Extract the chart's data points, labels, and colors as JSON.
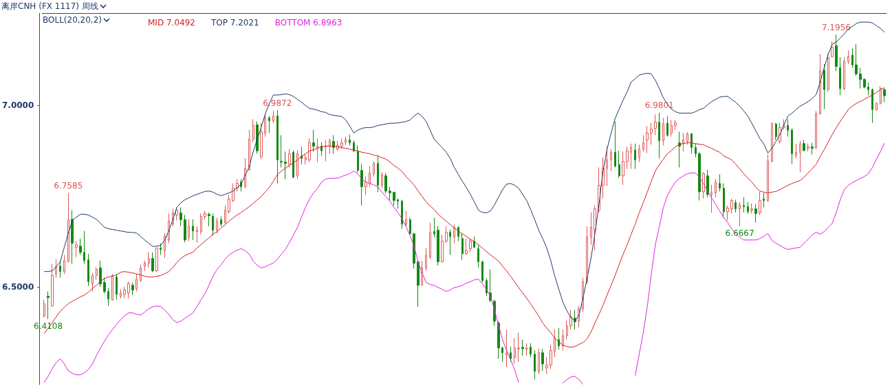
{
  "chart_data": {
    "type": "candlestick",
    "title": "离岸CNH (FX 1117) 周线",
    "legend_title": "BOLL(20,20,2)",
    "legend": "top left",
    "tick_labels": "y",
    "marker": "none",
    "line_style": "solid",
    "ylim": [
      6.23,
      7.255
    ],
    "yticks": [
      {
        "value": 6.5,
        "label": "6.5000"
      },
      {
        "value": 7,
        "label": "7.0000"
      }
    ],
    "categories": [
      null,
      null,
      null,
      null,
      null,
      null,
      null,
      null,
      null,
      null,
      null,
      null,
      null,
      null,
      null,
      null,
      null,
      null,
      null,
      null,
      null,
      null,
      null,
      null,
      null,
      null,
      null,
      null,
      null,
      null,
      null,
      null,
      null,
      null,
      null,
      null,
      null,
      null,
      null,
      null,
      null,
      null,
      null,
      null,
      null,
      null,
      null,
      null,
      null,
      null,
      null,
      null,
      null,
      null,
      null,
      null,
      null,
      null,
      null,
      null,
      null,
      null,
      null,
      null,
      null,
      null,
      null,
      null,
      null,
      null,
      null,
      null,
      null,
      null,
      null,
      null,
      null,
      null,
      null,
      null,
      null,
      null,
      null,
      null,
      null,
      null,
      null,
      null,
      null,
      null,
      null,
      null,
      null,
      null,
      null,
      null,
      null,
      null,
      null,
      null,
      null,
      null,
      null,
      null,
      null,
      null,
      null,
      null,
      null,
      null,
      null,
      null,
      null,
      null,
      null,
      null,
      null,
      null,
      null,
      null,
      null,
      null,
      null,
      null,
      null,
      null,
      null,
      null,
      null,
      null,
      null,
      null,
      null,
      null,
      null,
      null,
      null,
      null,
      null,
      null,
      null,
      null,
      null,
      null,
      null,
      null,
      null,
      null,
      null,
      null,
      null,
      null,
      null,
      null,
      null,
      null,
      null,
      null,
      null,
      null,
      null,
      null,
      null,
      null,
      null,
      null,
      null,
      null,
      null,
      null,
      null,
      null,
      null,
      null,
      null,
      null,
      null,
      null,
      null,
      null,
      null,
      null,
      null,
      null,
      null,
      null,
      null,
      null,
      null,
      null,
      null,
      null,
      null,
      null,
      null,
      null,
      null,
      null,
      null,
      null,
      null,
      null,
      null,
      null,
      null,
      null,
      null,
      null,
      null,
      null
    ],
    "ohlc": [
      [
        6.419,
        6.464,
        6.415,
        6.453
      ],
      [
        6.474,
        6.487,
        6.4108,
        6.47
      ],
      [
        6.447,
        6.563,
        6.445,
        6.531
      ],
      [
        6.535,
        6.576,
        6.525,
        6.555
      ],
      [
        6.557,
        6.572,
        6.525,
        6.542
      ],
      [
        6.542,
        6.588,
        6.535,
        6.572
      ],
      [
        6.569,
        6.7585,
        6.567,
        6.685
      ],
      [
        6.686,
        6.711,
        6.563,
        6.62
      ],
      [
        6.609,
        6.626,
        6.582,
        6.616
      ],
      [
        6.612,
        6.633,
        6.588,
        6.595
      ],
      [
        6.595,
        6.654,
        6.563,
        6.572
      ],
      [
        6.574,
        6.591,
        6.502,
        6.514
      ],
      [
        6.508,
        6.538,
        6.487,
        6.531
      ],
      [
        6.531,
        6.554,
        6.519,
        6.548
      ],
      [
        6.552,
        6.572,
        6.5,
        6.508
      ],
      [
        6.512,
        6.525,
        6.481,
        6.487
      ],
      [
        6.487,
        6.496,
        6.447,
        6.466
      ],
      [
        6.464,
        6.535,
        6.462,
        6.531
      ],
      [
        6.527,
        6.535,
        6.464,
        6.479
      ],
      [
        6.474,
        6.493,
        6.468,
        6.483
      ],
      [
        6.479,
        6.5,
        6.468,
        6.491
      ],
      [
        6.483,
        6.515,
        6.468,
        6.508
      ],
      [
        6.504,
        6.512,
        6.477,
        6.491
      ],
      [
        6.495,
        6.535,
        6.487,
        6.521
      ],
      [
        6.517,
        6.561,
        6.514,
        6.552
      ],
      [
        6.557,
        6.572,
        6.544,
        6.565
      ],
      [
        6.565,
        6.595,
        6.553,
        6.578
      ],
      [
        6.578,
        6.595,
        6.54,
        6.544
      ],
      [
        6.544,
        6.607,
        6.54,
        6.607
      ],
      [
        6.607,
        6.62,
        6.588,
        6.603
      ],
      [
        6.599,
        6.648,
        6.58,
        6.639
      ],
      [
        6.629,
        6.702,
        6.62,
        6.681
      ],
      [
        6.673,
        6.715,
        6.667,
        6.704
      ],
      [
        6.698,
        6.719,
        6.683,
        6.711
      ],
      [
        6.704,
        6.719,
        6.667,
        6.685
      ],
      [
        6.685,
        6.698,
        6.622,
        6.629
      ],
      [
        6.637,
        6.686,
        6.626,
        6.667
      ],
      [
        6.667,
        6.686,
        6.629,
        6.654
      ],
      [
        6.652,
        6.667,
        6.622,
        6.656
      ],
      [
        6.652,
        6.702,
        6.645,
        6.694
      ],
      [
        6.694,
        6.709,
        6.686,
        6.702
      ],
      [
        6.7,
        6.705,
        6.667,
        6.696
      ],
      [
        6.694,
        6.702,
        6.641,
        6.656
      ],
      [
        6.656,
        6.69,
        6.648,
        6.681
      ],
      [
        6.685,
        6.694,
        6.667,
        6.673
      ],
      [
        6.677,
        6.724,
        6.673,
        6.711
      ],
      [
        6.707,
        6.753,
        6.702,
        6.742
      ],
      [
        6.738,
        6.785,
        6.734,
        6.772
      ],
      [
        6.772,
        6.797,
        6.763,
        6.785
      ],
      [
        6.789,
        6.797,
        6.763,
        6.776
      ],
      [
        6.776,
        6.854,
        6.772,
        6.827
      ],
      [
        6.823,
        6.933,
        6.819,
        6.907
      ],
      [
        6.907,
        6.962,
        6.899,
        6.945
      ],
      [
        6.947,
        6.956,
        6.867,
        6.875
      ],
      [
        6.859,
        6.952,
        6.852,
        6.928
      ],
      [
        6.924,
        6.977,
        6.914,
        6.966
      ],
      [
        6.966,
        6.971,
        6.924,
        6.958
      ],
      [
        6.958,
        6.985,
        6.952,
        6.971
      ],
      [
        6.971,
        6.9872,
        6.785,
        6.85
      ],
      [
        6.846,
        6.918,
        6.829,
        6.844
      ],
      [
        6.844,
        6.873,
        6.797,
        6.84
      ],
      [
        6.837,
        6.88,
        6.829,
        6.867
      ],
      [
        6.871,
        6.876,
        6.8,
        6.802
      ],
      [
        6.806,
        6.876,
        6.797,
        6.867
      ],
      [
        6.861,
        6.886,
        6.838,
        6.854
      ],
      [
        6.85,
        6.867,
        6.838,
        6.857
      ],
      [
        6.85,
        6.909,
        6.844,
        6.897
      ],
      [
        6.897,
        6.933,
        6.873,
        6.888
      ],
      [
        6.884,
        6.909,
        6.844,
        6.888
      ],
      [
        6.888,
        6.899,
        6.861,
        6.875
      ],
      [
        6.886,
        6.905,
        6.846,
        6.888
      ],
      [
        6.888,
        6.909,
        6.867,
        6.903
      ],
      [
        6.901,
        6.918,
        6.867,
        6.884
      ],
      [
        6.88,
        6.903,
        6.876,
        6.89
      ],
      [
        6.888,
        6.909,
        6.88,
        6.897
      ],
      [
        6.899,
        6.914,
        6.89,
        6.905
      ],
      [
        6.905,
        6.92,
        6.89,
        6.897
      ],
      [
        6.897,
        6.903,
        6.871,
        6.875
      ],
      [
        6.873,
        6.89,
        6.816,
        6.821
      ],
      [
        6.821,
        6.839,
        6.724,
        6.776
      ],
      [
        6.776,
        6.804,
        6.753,
        6.789
      ],
      [
        6.785,
        6.833,
        6.776,
        6.814
      ],
      [
        6.812,
        6.846,
        6.804,
        6.84
      ],
      [
        6.84,
        6.861,
        6.761,
        6.78
      ],
      [
        6.78,
        6.816,
        6.772,
        6.808
      ],
      [
        6.806,
        6.814,
        6.757,
        6.764
      ],
      [
        6.764,
        6.776,
        6.738,
        6.759
      ],
      [
        6.761,
        6.761,
        6.724,
        6.738
      ],
      [
        6.74,
        6.743,
        6.715,
        6.736
      ],
      [
        6.736,
        6.74,
        6.66,
        6.673
      ],
      [
        6.673,
        6.709,
        6.667,
        6.685
      ],
      [
        6.685,
        6.69,
        6.643,
        6.646
      ],
      [
        6.646,
        6.648,
        6.55,
        6.565
      ],
      [
        6.569,
        6.571,
        6.445,
        6.504
      ],
      [
        6.504,
        6.571,
        6.504,
        6.552
      ],
      [
        6.552,
        6.607,
        6.544,
        6.586
      ],
      [
        6.582,
        6.677,
        6.576,
        6.65
      ],
      [
        6.652,
        6.69,
        6.637,
        6.646
      ],
      [
        6.656,
        6.667,
        6.559,
        6.569
      ],
      [
        6.569,
        6.643,
        6.567,
        6.626
      ],
      [
        6.626,
        6.667,
        6.62,
        6.65
      ],
      [
        6.65,
        6.658,
        6.588,
        6.639
      ],
      [
        6.637,
        6.671,
        6.62,
        6.664
      ],
      [
        6.664,
        6.667,
        6.626,
        6.639
      ],
      [
        6.633,
        6.648,
        6.574,
        6.591
      ],
      [
        6.591,
        6.633,
        6.588,
        6.599
      ],
      [
        6.605,
        6.633,
        6.595,
        6.626
      ],
      [
        6.626,
        6.639,
        6.607,
        6.609
      ],
      [
        6.605,
        6.616,
        6.553,
        6.569
      ],
      [
        6.569,
        6.572,
        6.512,
        6.517
      ],
      [
        6.517,
        6.523,
        6.474,
        6.483
      ],
      [
        6.483,
        6.548,
        6.458,
        6.462
      ],
      [
        6.46,
        6.464,
        6.392,
        6.405
      ],
      [
        6.4,
        6.405,
        6.301,
        6.331
      ],
      [
        6.331,
        6.335,
        6.293,
        6.318
      ],
      [
        6.312,
        6.382,
        6.278,
        6.318
      ],
      [
        6.318,
        6.335,
        6.293,
        6.301
      ],
      [
        6.305,
        6.358,
        6.287,
        6.331
      ],
      [
        6.329,
        6.373,
        6.293,
        6.331
      ],
      [
        6.333,
        6.354,
        6.31,
        6.329
      ],
      [
        6.327,
        6.344,
        6.31,
        6.331
      ],
      [
        6.333,
        6.344,
        6.306,
        6.314
      ],
      [
        6.314,
        6.325,
        6.244,
        6.267
      ],
      [
        6.267,
        6.329,
        6.259,
        6.318
      ],
      [
        6.318,
        6.329,
        6.268,
        6.287
      ],
      [
        6.276,
        6.306,
        6.259,
        6.284
      ],
      [
        6.284,
        6.341,
        6.274,
        6.324
      ],
      [
        6.322,
        6.382,
        6.306,
        6.358
      ],
      [
        6.354,
        6.386,
        6.327,
        6.337
      ],
      [
        6.337,
        6.382,
        6.324,
        6.365
      ],
      [
        6.365,
        6.407,
        6.354,
        6.392
      ],
      [
        6.392,
        6.436,
        6.382,
        6.417
      ],
      [
        6.413,
        6.436,
        6.382,
        6.403
      ],
      [
        6.405,
        6.447,
        6.388,
        6.439
      ],
      [
        6.439,
        6.525,
        6.43,
        6.514
      ],
      [
        6.514,
        6.667,
        6.508,
        6.637
      ],
      [
        6.637,
        6.705,
        6.616,
        6.664
      ],
      [
        6.656,
        6.724,
        6.601,
        6.715
      ],
      [
        6.711,
        6.829,
        6.705,
        6.78
      ],
      [
        6.78,
        6.857,
        6.743,
        6.827
      ],
      [
        6.827,
        6.886,
        6.778,
        6.85
      ],
      [
        6.85,
        6.88,
        6.819,
        6.871
      ],
      [
        6.871,
        6.956,
        6.829,
        6.833
      ],
      [
        6.837,
        6.876,
        6.8,
        6.806
      ],
      [
        6.806,
        6.873,
        6.781,
        6.846
      ],
      [
        6.846,
        6.886,
        6.825,
        6.875
      ],
      [
        6.871,
        6.895,
        6.825,
        6.884
      ],
      [
        6.877,
        6.895,
        6.825,
        6.85
      ],
      [
        6.857,
        6.892,
        6.844,
        6.88
      ],
      [
        6.88,
        6.918,
        6.873,
        6.897
      ],
      [
        6.905,
        6.943,
        6.869,
        6.924
      ],
      [
        6.924,
        6.952,
        6.892,
        6.935
      ],
      [
        6.937,
        6.975,
        6.918,
        6.954
      ],
      [
        6.954,
        6.9801,
        6.854,
        6.903
      ],
      [
        6.903,
        6.966,
        6.89,
        6.949
      ],
      [
        6.951,
        6.971,
        6.914,
        6.918
      ],
      [
        6.924,
        6.96,
        6.914,
        6.945
      ],
      [
        6.945,
        6.96,
        6.933,
        6.952
      ],
      [
        6.897,
        6.928,
        6.829,
        6.888
      ],
      [
        6.897,
        6.924,
        6.873,
        6.905
      ],
      [
        6.901,
        6.926,
        6.892,
        6.922
      ],
      [
        6.922,
        6.924,
        6.867,
        6.884
      ],
      [
        6.884,
        6.895,
        6.857,
        6.867
      ],
      [
        6.867,
        6.871,
        6.738,
        6.762
      ],
      [
        6.762,
        6.816,
        6.743,
        6.812
      ],
      [
        6.806,
        6.823,
        6.747,
        6.755
      ],
      [
        6.755,
        6.781,
        6.704,
        6.759
      ],
      [
        6.759,
        6.797,
        6.747,
        6.789
      ],
      [
        6.785,
        6.81,
        6.763,
        6.772
      ],
      [
        6.772,
        6.785,
        6.69,
        6.707
      ],
      [
        6.707,
        6.724,
        6.683,
        6.717
      ],
      [
        6.715,
        6.743,
        6.702,
        6.738
      ],
      [
        6.732,
        6.74,
        6.705,
        6.715
      ],
      [
        6.715,
        6.734,
        6.6667,
        6.726
      ],
      [
        6.724,
        6.747,
        6.705,
        6.721
      ],
      [
        6.721,
        6.734,
        6.702,
        6.707
      ],
      [
        6.711,
        6.73,
        6.702,
        6.715
      ],
      [
        6.715,
        6.728,
        6.677,
        6.702
      ],
      [
        6.704,
        6.762,
        6.698,
        6.738
      ],
      [
        6.742,
        6.759,
        6.719,
        6.738
      ],
      [
        6.738,
        6.865,
        6.734,
        6.846
      ],
      [
        6.846,
        6.952,
        6.844,
        6.951
      ],
      [
        6.949,
        6.952,
        6.905,
        6.914
      ],
      [
        6.901,
        6.952,
        6.895,
        6.939
      ],
      [
        6.939,
        6.962,
        6.933,
        6.945
      ],
      [
        6.945,
        6.962,
        6.914,
        6.932
      ],
      [
        6.932,
        6.937,
        6.839,
        6.867
      ],
      [
        6.863,
        6.895,
        6.854,
        6.871
      ],
      [
        6.871,
        6.903,
        6.816,
        6.894
      ],
      [
        6.895,
        6.905,
        6.873,
        6.876
      ],
      [
        6.882,
        6.895,
        6.873,
        6.886
      ],
      [
        6.886,
        6.897,
        6.865,
        6.882
      ],
      [
        6.884,
        6.985,
        6.88,
        6.977
      ],
      [
        6.977,
        7.142,
        6.975,
        7.095
      ],
      [
        7.097,
        7.114,
        6.99,
        7.044
      ],
      [
        7.044,
        7.142,
        7.038,
        7.133
      ],
      [
        7.135,
        7.177,
        7.133,
        7.161
      ],
      [
        7.165,
        7.1956,
        7.095,
        7.108
      ],
      [
        7.104,
        7.133,
        7.028,
        7.047
      ],
      [
        7.047,
        7.133,
        7.042,
        7.122
      ],
      [
        7.122,
        7.152,
        7.114,
        7.135
      ],
      [
        7.139,
        7.158,
        7.104,
        7.112
      ],
      [
        7.112,
        7.169,
        7.082,
        7.087
      ],
      [
        7.087,
        7.104,
        7.047,
        7.072
      ],
      [
        7.072,
        7.076,
        7.047,
        7.051
      ],
      [
        7.051,
        7.063,
        7.028,
        7.044
      ],
      [
        7.044,
        7.047,
        6.952,
        6.989
      ],
      [
        6.989,
        7.009,
        6.985,
        7.006
      ],
      [
        7.006,
        7.053,
        7.002,
        7.047
      ],
      [
        7.044,
        7.047,
        7.009,
        7.027
      ]
    ],
    "series": [
      {
        "name": "MID 7.0492",
        "type": "line",
        "color": "#d42020",
        "values": [
          6.371,
          6.386,
          6.401,
          6.417,
          6.432,
          6.443,
          6.453,
          6.46,
          6.466,
          6.472,
          6.477,
          6.485,
          6.495,
          6.504,
          6.515,
          6.523,
          6.527,
          6.529,
          6.533,
          6.54,
          6.542,
          6.54,
          6.538,
          6.535,
          6.533,
          6.529,
          6.527,
          6.527,
          6.529,
          6.531,
          6.536,
          6.542,
          6.553,
          6.567,
          6.578,
          6.586,
          6.591,
          6.595,
          6.607,
          6.616,
          6.626,
          6.635,
          6.645,
          6.652,
          6.662,
          6.671,
          6.681,
          6.69,
          6.698,
          6.705,
          6.713,
          6.721,
          6.73,
          6.74,
          6.749,
          6.762,
          6.774,
          6.791,
          6.81,
          6.819,
          6.827,
          6.835,
          6.842,
          6.85,
          6.859,
          6.867,
          6.875,
          6.878,
          6.882,
          6.886,
          6.888,
          6.888,
          6.888,
          6.886,
          6.884,
          6.882,
          6.88,
          6.876,
          6.875,
          6.871,
          6.869,
          6.867,
          6.863,
          6.861,
          6.856,
          6.852,
          6.844,
          6.835,
          6.827,
          6.818,
          6.804,
          6.793,
          6.781,
          6.764,
          6.749,
          6.734,
          6.723,
          6.713,
          6.7,
          6.69,
          6.681,
          6.671,
          6.662,
          6.654,
          6.646,
          6.639,
          6.631,
          6.624,
          6.616,
          6.607,
          6.597,
          6.588,
          6.58,
          6.571,
          6.557,
          6.544,
          6.529,
          6.514,
          6.498,
          6.483,
          6.468,
          6.453,
          6.436,
          6.419,
          6.4,
          6.386,
          6.373,
          6.358,
          6.348,
          6.339,
          6.335,
          6.333,
          6.335,
          6.341,
          6.346,
          6.356,
          6.375,
          6.4,
          6.424,
          6.449,
          6.477,
          6.504,
          6.531,
          6.561,
          6.59,
          6.616,
          6.645,
          6.673,
          6.704,
          6.732,
          6.761,
          6.791,
          6.819,
          6.837,
          6.852,
          6.867,
          6.876,
          6.886,
          6.893,
          6.895,
          6.897,
          6.897,
          6.895,
          6.893,
          6.892,
          6.886,
          6.882,
          6.876,
          6.871,
          6.861,
          6.856,
          6.85,
          6.838,
          6.825,
          6.812,
          6.8,
          6.789,
          6.774,
          6.764,
          6.761,
          6.759,
          6.761,
          6.763,
          6.768,
          6.774,
          6.78,
          6.785,
          6.789,
          6.793,
          6.802,
          6.814,
          6.825,
          6.838,
          6.859,
          6.878,
          6.899,
          6.92,
          6.939,
          6.956,
          6.973,
          6.989,
          6.998,
          7.006,
          7.011,
          7.017,
          7.023,
          7.029,
          7.036,
          7.044,
          7.0492
        ]
      },
      {
        "name": "TOP 7.2021",
        "type": "line",
        "color": "#1f3a68",
        "values": [
          6.542,
          6.542,
          6.544,
          6.555,
          6.569,
          6.609,
          6.648,
          6.683,
          6.692,
          6.7,
          6.7,
          6.698,
          6.692,
          6.686,
          6.675,
          6.664,
          6.66,
          6.658,
          6.656,
          6.654,
          6.652,
          6.65,
          6.65,
          6.648,
          6.639,
          6.629,
          6.62,
          6.611,
          6.612,
          6.614,
          6.629,
          6.654,
          6.685,
          6.719,
          6.732,
          6.74,
          6.745,
          6.751,
          6.755,
          6.759,
          6.763,
          6.764,
          6.761,
          6.755,
          6.751,
          6.755,
          6.759,
          6.764,
          6.774,
          6.783,
          6.808,
          6.831,
          6.873,
          6.907,
          6.941,
          6.977,
          7.006,
          7.029,
          7.029,
          7.03,
          7.032,
          7.03,
          7.025,
          7.017,
          7.009,
          7.0,
          6.992,
          6.99,
          6.987,
          6.983,
          6.981,
          6.975,
          6.973,
          6.971,
          6.97,
          6.96,
          6.943,
          6.924,
          6.932,
          6.937,
          6.939,
          6.939,
          6.941,
          6.945,
          6.947,
          6.949,
          6.951,
          6.951,
          6.952,
          6.954,
          6.956,
          6.96,
          6.971,
          6.979,
          6.97,
          6.956,
          6.932,
          6.907,
          6.895,
          6.884,
          6.871,
          6.854,
          6.829,
          6.81,
          6.791,
          6.774,
          6.755,
          6.734,
          6.711,
          6.705,
          6.704,
          6.709,
          6.726,
          6.747,
          6.768,
          6.783,
          6.785,
          6.78,
          6.772,
          6.755,
          6.738,
          6.713,
          6.685,
          6.656,
          6.633,
          6.607,
          6.572,
          6.529,
          6.493,
          6.458,
          6.434,
          6.415,
          6.407,
          6.42,
          6.468,
          6.521,
          6.578,
          6.648,
          6.728,
          6.819,
          6.88,
          6.924,
          6.964,
          6.99,
          7.015,
          7.038,
          7.065,
          7.074,
          7.084,
          7.087,
          7.089,
          7.087,
          7.07,
          7.047,
          7.021,
          7.004,
          6.99,
          6.983,
          6.979,
          6.979,
          6.979,
          6.979,
          6.983,
          6.989,
          6.992,
          7.002,
          7.011,
          7.017,
          7.023,
          7.025,
          7.025,
          7.017,
          7.009,
          6.998,
          6.985,
          6.971,
          6.951,
          6.93,
          6.909,
          6.894,
          6.869,
          6.882,
          6.901,
          6.92,
          6.947,
          6.971,
          6.979,
          6.989,
          6.998,
          7.004,
          7.011,
          7.019,
          7.03,
          7.065,
          7.104,
          7.141,
          7.169,
          7.175,
          7.186,
          7.198,
          7.211,
          7.218,
          7.226,
          7.23,
          7.23,
          7.23,
          7.228,
          7.22,
          7.213,
          7.2021
        ]
      },
      {
        "name": "BOTTOM 6.8963",
        "type": "line",
        "color": "#dd22dd",
        "values": [
          6.236,
          6.253,
          6.274,
          6.291,
          6.301,
          6.287,
          6.268,
          6.261,
          6.257,
          6.257,
          6.263,
          6.272,
          6.287,
          6.31,
          6.331,
          6.35,
          6.367,
          6.382,
          6.396,
          6.409,
          6.42,
          6.428,
          6.428,
          6.424,
          6.422,
          6.43,
          6.439,
          6.445,
          6.447,
          6.445,
          6.436,
          6.424,
          6.409,
          6.401,
          6.405,
          6.413,
          6.42,
          6.428,
          6.445,
          6.464,
          6.481,
          6.504,
          6.529,
          6.548,
          6.561,
          6.576,
          6.588,
          6.595,
          6.601,
          6.605,
          6.599,
          6.59,
          6.571,
          6.559,
          6.552,
          6.555,
          6.561,
          6.565,
          6.576,
          6.59,
          6.603,
          6.622,
          6.643,
          6.664,
          6.692,
          6.719,
          6.742,
          6.759,
          6.772,
          6.789,
          6.797,
          6.799,
          6.799,
          6.8,
          6.804,
          6.808,
          6.812,
          6.819,
          6.812,
          6.797,
          6.789,
          6.785,
          6.781,
          6.776,
          6.761,
          6.749,
          6.736,
          6.719,
          6.704,
          6.688,
          6.666,
          6.641,
          6.612,
          6.569,
          6.538,
          6.512,
          6.506,
          6.504,
          6.498,
          6.493,
          6.487,
          6.491,
          6.498,
          6.5,
          6.504,
          6.51,
          6.514,
          6.519,
          6.521,
          6.508,
          6.493,
          6.474,
          6.436,
          6.394,
          6.354,
          6.325,
          6.299,
          6.272,
          6.236,
          null,
          null,
          null,
          null,
          null,
          null,
          null,
          null,
          null,
          null,
          6.234,
          6.244,
          6.251,
          6.253,
          6.244,
          6.231,
          null,
          null,
          null,
          null,
          null,
          null,
          null,
          null,
          null,
          null,
          null,
          null,
          6.255,
          6.314,
          6.373,
          6.445,
          6.534,
          6.616,
          6.666,
          6.719,
          6.751,
          6.772,
          6.789,
          6.799,
          6.806,
          6.812,
          6.814,
          6.814,
          6.802,
          6.785,
          6.764,
          6.745,
          6.728,
          6.709,
          6.692,
          6.677,
          6.66,
          6.647,
          6.637,
          6.629,
          6.629,
          6.629,
          6.629,
          6.633,
          6.639,
          6.647,
          6.628,
          6.62,
          6.614,
          6.607,
          6.603,
          6.605,
          6.607,
          6.609,
          6.62,
          6.631,
          6.643,
          6.65,
          6.645,
          6.652,
          6.664,
          6.675,
          6.705,
          6.74,
          6.768,
          6.78,
          6.787,
          6.793,
          6.799,
          6.804,
          6.812,
          6.829,
          6.852,
          6.873,
          6.8963
        ]
      }
    ],
    "annotations": [
      {
        "text": "6.4108",
        "y": 6.4108
      },
      {
        "text": "6.7585",
        "y": 6.7585
      },
      {
        "text": "6.9872",
        "y": 6.9872
      },
      {
        "text": "6.9801",
        "y": 6.9801
      },
      {
        "text": "6.6667",
        "y": 6.6667
      },
      {
        "text": "7.1956",
        "y": 7.1956
      }
    ]
  }
}
